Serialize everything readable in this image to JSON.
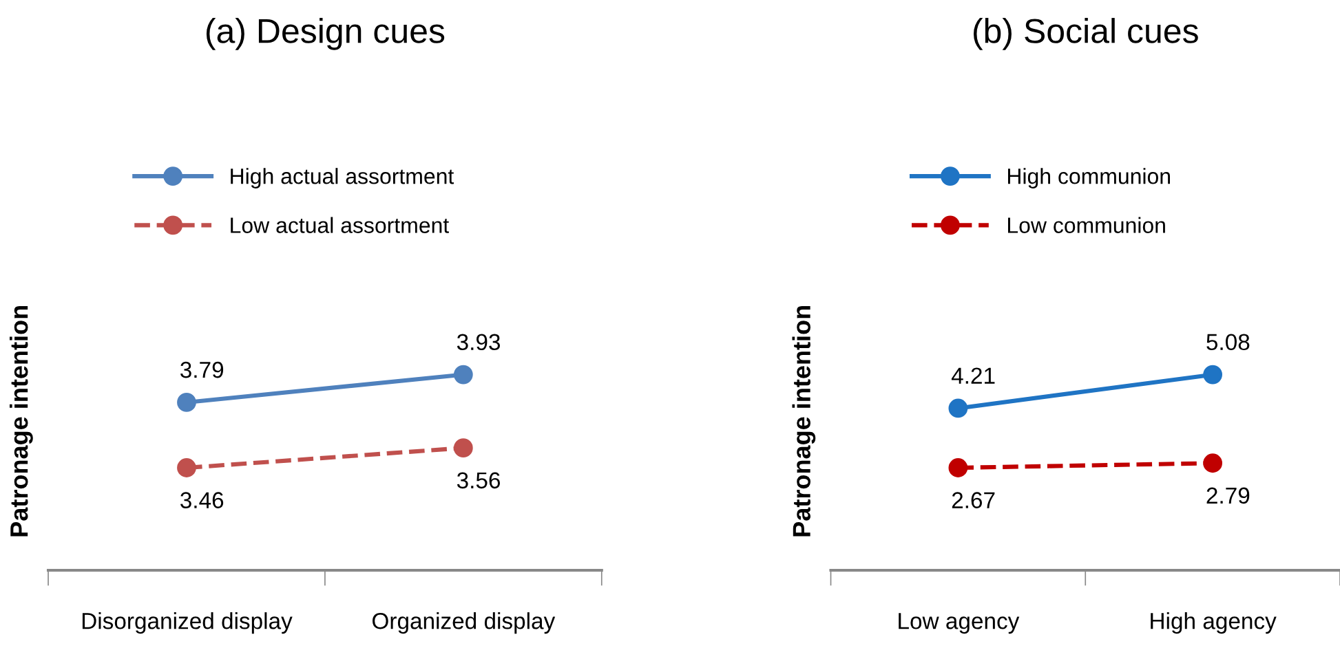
{
  "chart_data": [
    {
      "type": "line",
      "title": "(a) Design cues",
      "ylabel": "Patronage intention",
      "categories": [
        "Disorganized display",
        "Organized display"
      ],
      "series": [
        {
          "name": "High actual assortment",
          "color": "#4f81bd",
          "values": [
            3.79,
            3.93
          ],
          "line_style": "solid"
        },
        {
          "name": "Low actual assortment",
          "color": "#c0504d",
          "values": [
            3.46,
            3.56
          ],
          "line_style": "dashed"
        }
      ],
      "marker": "circle",
      "data_labels": true,
      "legend": "top",
      "tick_labels": "x"
    },
    {
      "type": "line",
      "title": "(b) Social cues",
      "ylabel": "Patronage intention",
      "categories": [
        "Low agency",
        "High agency"
      ],
      "series": [
        {
          "name": "High communion",
          "color": "#1f74c4",
          "values": [
            4.21,
            5.08
          ],
          "line_style": "solid"
        },
        {
          "name": "Low communion",
          "color": "#c00000",
          "values": [
            2.67,
            2.79
          ],
          "line_style": "dashed"
        }
      ],
      "marker": "circle",
      "data_labels": true,
      "legend": "top",
      "tick_labels": "x"
    }
  ]
}
